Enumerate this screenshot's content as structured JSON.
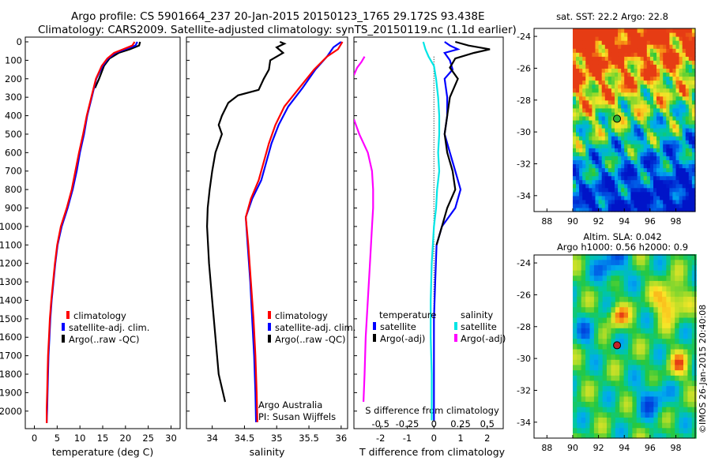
{
  "header": {
    "line1": "Argo profile: CS 5901664_237 20-Jan-2015 20150123_1765 29.172S 93.438E",
    "line2": "Climatology: CARS2009. Satellite-adjusted climatology: synTS_20150119.nc (1.1d earlier)"
  },
  "colors": {
    "climatology": "#ff0000",
    "satellite": "#0000ff",
    "argo": "#000000",
    "sal_satellite": "#00e5e5",
    "sal_argo": "#ff00ff",
    "marker_sst": "#2fb53a",
    "marker_sla": "#c0232b"
  },
  "depth_ticks": [
    "0",
    "100",
    "200",
    "300",
    "400",
    "500",
    "600",
    "700",
    "800",
    "900",
    "1000",
    "1100",
    "1200",
    "1300",
    "1400",
    "1500",
    "1600",
    "1700",
    "1800",
    "1900",
    "2000"
  ],
  "footer_text": "©IMOS 26-Jan-2015 20:40:08",
  "chart_data": [
    {
      "type": "line",
      "id": "temperature",
      "xlabel": "temperature (deg C)",
      "xlim": [
        -2,
        32
      ],
      "ylim": [
        0,
        2070
      ],
      "y_reversed": true,
      "x_ticks": [
        "0",
        "5",
        "10",
        "15",
        "20",
        "25",
        "30"
      ],
      "legend": [
        "climatology",
        "satellite-adj. clim.",
        "Argo(..raw -QC)"
      ],
      "series": [
        {
          "name": "climatology",
          "color": "#ff0000",
          "points": [
            [
              22.0,
              0
            ],
            [
              21.5,
              20
            ],
            [
              19.5,
              40
            ],
            [
              17.5,
              60
            ],
            [
              16.0,
              90
            ],
            [
              14.8,
              130
            ],
            [
              13.5,
              200
            ],
            [
              12.5,
              300
            ],
            [
              11.5,
              400
            ],
            [
              10.7,
              500
            ],
            [
              9.8,
              600
            ],
            [
              9.0,
              700
            ],
            [
              8.2,
              800
            ],
            [
              7.1,
              900
            ],
            [
              5.8,
              1000
            ],
            [
              5.0,
              1100
            ],
            [
              4.5,
              1200
            ],
            [
              4.1,
              1300
            ],
            [
              3.7,
              1400
            ],
            [
              3.4,
              1500
            ],
            [
              3.2,
              1600
            ],
            [
              3.0,
              1700
            ],
            [
              2.9,
              1800
            ],
            [
              2.8,
              1900
            ],
            [
              2.7,
              1990
            ],
            [
              2.7,
              2065
            ]
          ]
        },
        {
          "name": "satellite-adj. clim.",
          "color": "#0000ff",
          "points": [
            [
              22.6,
              0
            ],
            [
              22.2,
              20
            ],
            [
              20.0,
              40
            ],
            [
              17.8,
              60
            ],
            [
              16.2,
              90
            ],
            [
              15.0,
              130
            ],
            [
              13.6,
              200
            ],
            [
              12.6,
              300
            ],
            [
              11.6,
              400
            ],
            [
              10.9,
              500
            ],
            [
              10.0,
              600
            ],
            [
              9.3,
              700
            ],
            [
              8.4,
              800
            ],
            [
              7.3,
              900
            ],
            [
              6.0,
              1000
            ],
            [
              5.1,
              1100
            ],
            [
              4.6,
              1200
            ],
            [
              4.2,
              1300
            ],
            [
              3.8,
              1400
            ],
            [
              3.5,
              1500
            ],
            [
              3.3,
              1600
            ],
            [
              3.1,
              1700
            ],
            [
              3.0,
              1800
            ],
            [
              2.9,
              1900
            ],
            [
              2.8,
              1990
            ],
            [
              2.7,
              2065
            ]
          ]
        },
        {
          "name": "Argo(..raw -QC)",
          "color": "#000000",
          "points": [
            [
              23.2,
              0
            ],
            [
              23.0,
              20
            ],
            [
              21.0,
              40
            ],
            [
              18.5,
              60
            ],
            [
              16.5,
              90
            ],
            [
              15.3,
              130
            ],
            [
              14.2,
              200
            ],
            [
              13.3,
              250
            ]
          ]
        }
      ]
    },
    {
      "type": "line",
      "id": "salinity",
      "xlabel": "salinity",
      "xlim": [
        33.6,
        36.1
      ],
      "ylim": [
        0,
        2070
      ],
      "y_reversed": true,
      "x_ticks": [
        "34",
        "34.5",
        "35",
        "35.5",
        "36"
      ],
      "legend": [
        "climatology",
        "satellite-adj. clim.",
        "Argo(..raw -QC)"
      ],
      "annotations": [
        "Argo Australia",
        "PI: Susan Wijffels"
      ],
      "series": [
        {
          "name": "climatology",
          "color": "#ff0000",
          "points": [
            [
              36.02,
              0
            ],
            [
              35.95,
              40
            ],
            [
              35.78,
              80
            ],
            [
              35.58,
              150
            ],
            [
              35.35,
              250
            ],
            [
              35.12,
              350
            ],
            [
              34.98,
              450
            ],
            [
              34.88,
              550
            ],
            [
              34.8,
              650
            ],
            [
              34.72,
              750
            ],
            [
              34.6,
              850
            ],
            [
              34.52,
              950
            ],
            [
              34.56,
              1100
            ],
            [
              34.6,
              1300
            ],
            [
              34.64,
              1500
            ],
            [
              34.67,
              1700
            ],
            [
              34.69,
              1900
            ],
            [
              34.7,
              2060
            ]
          ]
        },
        {
          "name": "satellite-adj. clim.",
          "color": "#0000ff",
          "points": [
            [
              36.0,
              0
            ],
            [
              35.88,
              30
            ],
            [
              35.78,
              80
            ],
            [
              35.6,
              150
            ],
            [
              35.4,
              250
            ],
            [
              35.18,
              350
            ],
            [
              35.03,
              450
            ],
            [
              34.92,
              550
            ],
            [
              34.84,
              650
            ],
            [
              34.76,
              750
            ],
            [
              34.62,
              850
            ],
            [
              34.52,
              950
            ],
            [
              34.55,
              1100
            ],
            [
              34.59,
              1300
            ],
            [
              34.62,
              1500
            ],
            [
              34.65,
              1700
            ],
            [
              34.67,
              1900
            ],
            [
              34.68,
              2060
            ]
          ]
        },
        {
          "name": "Argo(..raw -QC)",
          "color": "#000000",
          "points": [
            [
              35.05,
              0
            ],
            [
              35.12,
              10
            ],
            [
              35.0,
              30
            ],
            [
              35.1,
              60
            ],
            [
              34.9,
              100
            ],
            [
              34.88,
              150
            ],
            [
              34.8,
              200
            ],
            [
              34.72,
              260
            ],
            [
              34.4,
              290
            ],
            [
              34.25,
              330
            ],
            [
              34.15,
              400
            ],
            [
              34.1,
              450
            ],
            [
              34.15,
              500
            ],
            [
              34.05,
              600
            ],
            [
              34.0,
              700
            ],
            [
              33.96,
              800
            ],
            [
              33.93,
              900
            ],
            [
              33.92,
              1000
            ],
            [
              33.95,
              1200
            ],
            [
              34.0,
              1400
            ],
            [
              34.05,
              1600
            ],
            [
              34.1,
              1800
            ],
            [
              34.2,
              1950
            ]
          ]
        }
      ]
    },
    {
      "type": "line",
      "id": "differences",
      "xlabel": "T difference from climatology",
      "xlabel_top": "S difference from climatology",
      "xlim_T": [
        -3.0,
        2.6
      ],
      "xlim_S": [
        -0.75,
        0.65
      ],
      "ylim": [
        0,
        2070
      ],
      "y_reversed": true,
      "x_ticks_T": [
        "-2",
        "-1",
        "0",
        "1",
        "2"
      ],
      "x_ticks_S": [
        "-0.5",
        "-0.25",
        "0",
        "0.25",
        "0.5"
      ],
      "legend_titles": [
        "temperature",
        "salinity"
      ],
      "legend": [
        "satellite",
        "Argo(-adj)",
        "satellite",
        "Argo(-adj)"
      ],
      "series": [
        {
          "name": "satellite",
          "axis": "T",
          "color": "#0000ff",
          "points": [
            [
              0.4,
              0
            ],
            [
              0.6,
              20
            ],
            [
              0.9,
              40
            ],
            [
              0.4,
              60
            ],
            [
              0.6,
              100
            ],
            [
              0.7,
              150
            ],
            [
              0.4,
              200
            ],
            [
              0.5,
              300
            ],
            [
              0.5,
              400
            ],
            [
              0.4,
              500
            ],
            [
              0.6,
              600
            ],
            [
              0.8,
              700
            ],
            [
              1.0,
              800
            ],
            [
              0.8,
              900
            ],
            [
              0.3,
              1000
            ],
            [
              0.1,
              1100
            ],
            [
              0.05,
              1300
            ],
            [
              0.0,
              1500
            ],
            [
              0.0,
              1700
            ],
            [
              0.0,
              2050
            ]
          ]
        },
        {
          "name": "Argo(-adj)",
          "axis": "T",
          "color": "#000000",
          "points": [
            [
              0.8,
              0
            ],
            [
              1.3,
              20
            ],
            [
              2.1,
              40
            ],
            [
              1.5,
              60
            ],
            [
              0.8,
              90
            ],
            [
              0.6,
              140
            ],
            [
              0.9,
              200
            ],
            [
              0.6,
              300
            ],
            [
              0.5,
              400
            ],
            [
              0.4,
              500
            ],
            [
              0.5,
              600
            ],
            [
              0.7,
              700
            ],
            [
              0.8,
              800
            ],
            [
              0.5,
              900
            ],
            [
              0.3,
              1000
            ],
            [
              0.1,
              1100
            ]
          ]
        },
        {
          "name": "satellite",
          "axis": "S",
          "color": "#00e5e5",
          "points": [
            [
              -0.1,
              0
            ],
            [
              -0.08,
              40
            ],
            [
              -0.05,
              80
            ],
            [
              0.0,
              130
            ],
            [
              0.02,
              200
            ],
            [
              0.04,
              300
            ],
            [
              0.05,
              400
            ],
            [
              0.05,
              500
            ],
            [
              0.04,
              600
            ],
            [
              0.05,
              700
            ],
            [
              0.03,
              800
            ],
            [
              0.02,
              900
            ],
            [
              0.0,
              1000
            ],
            [
              -0.01,
              1100
            ],
            [
              -0.02,
              1200
            ],
            [
              -0.03,
              1400
            ],
            [
              -0.03,
              1600
            ],
            [
              -0.02,
              1800
            ],
            [
              -0.02,
              2050
            ]
          ]
        },
        {
          "name": "Argo(-adj)",
          "axis": "S",
          "color": "#ff00ff",
          "points": [
            [
              -0.65,
              80
            ],
            [
              -0.68,
              110
            ],
            [
              -0.72,
              140
            ],
            [
              -0.75,
              180
            ]
          ]
        },
        {
          "name": "Argo(-adj)",
          "axis": "S",
          "color": "#ff00ff",
          "points": [
            [
              -0.75,
              420
            ],
            [
              -0.7,
              500
            ],
            [
              -0.62,
              600
            ],
            [
              -0.58,
              700
            ],
            [
              -0.57,
              800
            ],
            [
              -0.57,
              900
            ],
            [
              -0.58,
              1000
            ],
            [
              -0.6,
              1200
            ],
            [
              -0.62,
              1400
            ],
            [
              -0.64,
              1600
            ],
            [
              -0.65,
              1800
            ],
            [
              -0.66,
              1950
            ]
          ]
        }
      ]
    },
    {
      "type": "heatmap",
      "id": "sst_map",
      "title": "sat. SST: 22.2  Argo: 22.8",
      "xlim": [
        87,
        99.5
      ],
      "ylim": [
        -35,
        -23.5
      ],
      "x_ticks": [
        "88",
        "90",
        "92",
        "94",
        "96",
        "98"
      ],
      "y_ticks": [
        "-24",
        "-26",
        "-28",
        "-30",
        "-32",
        "-34"
      ],
      "data_extent": {
        "lon": [
          90,
          99.5
        ],
        "lat": [
          -35,
          -23.5
        ]
      },
      "marker": {
        "lon": 93.438,
        "lat": -29.172
      }
    },
    {
      "type": "heatmap",
      "id": "sla_map",
      "title": "Altim. SLA: 0.042",
      "subtitle": "Argo h1000: 0.56  h2000: 0.9",
      "xlim": [
        87,
        99.5
      ],
      "ylim": [
        -35,
        -23.5
      ],
      "x_ticks": [
        "88",
        "90",
        "92",
        "94",
        "96",
        "98"
      ],
      "y_ticks": [
        "-24",
        "-26",
        "-28",
        "-30",
        "-32",
        "-34"
      ],
      "data_extent": {
        "lon": [
          90,
          99.5
        ],
        "lat": [
          -35,
          -23.5
        ]
      },
      "marker": {
        "lon": 93.438,
        "lat": -29.172
      }
    }
  ]
}
